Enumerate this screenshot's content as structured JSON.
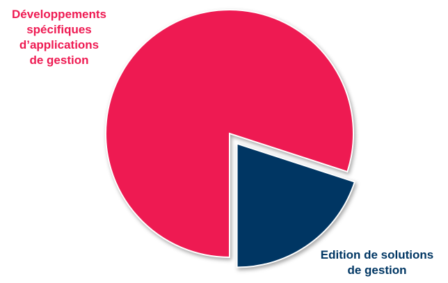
{
  "chart_data": {
    "type": "pie",
    "categories": [
      "Développements spécifiques d’applications de gestion",
      "Edition de solutions de gestion"
    ],
    "values": [
      80,
      20
    ],
    "colors": [
      "#EE1A52",
      "#003663"
    ],
    "exploded": [
      false,
      true
    ],
    "legend": "none",
    "labels": [
      {
        "text": "Développements\nspécifiques\nd’applications\nde gestion",
        "color": "#EE1A52"
      },
      {
        "text": "Edition de solutions\nde gestion",
        "color": "#003663"
      }
    ]
  }
}
